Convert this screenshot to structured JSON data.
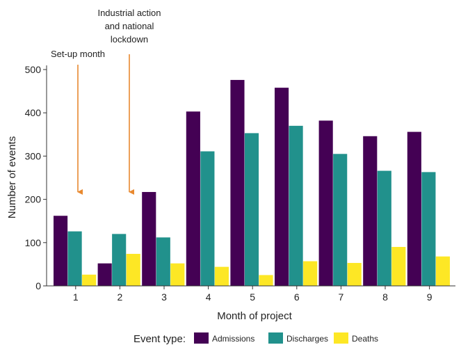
{
  "chart_data": {
    "type": "bar",
    "categories": [
      "1",
      "2",
      "3",
      "4",
      "5",
      "6",
      "7",
      "8",
      "9"
    ],
    "series": [
      {
        "name": "Admissions",
        "values": [
          162,
          52,
          217,
          403,
          476,
          458,
          382,
          346,
          356
        ],
        "color": "#440154"
      },
      {
        "name": "Discharges",
        "values": [
          126,
          120,
          112,
          311,
          353,
          370,
          305,
          266,
          263
        ],
        "color": "#21918c"
      },
      {
        "name": "Deaths",
        "values": [
          26,
          74,
          52,
          44,
          25,
          57,
          53,
          90,
          68
        ],
        "color": "#fde725"
      }
    ],
    "title": "",
    "xlabel": "Month of project",
    "ylabel": "Number of events",
    "ylim": [
      0,
      500
    ],
    "yticks": [
      0,
      100,
      200,
      300,
      400,
      500
    ],
    "grid": false,
    "legend": {
      "title": "Event type:",
      "placement": "bottom"
    },
    "annotations": [
      {
        "lines": [
          "Set-up month"
        ],
        "category": "1",
        "color": "#e8892f"
      },
      {
        "lines": [
          "Industrial action",
          "and national",
          "lockdown"
        ],
        "category": "2",
        "color": "#e8892f"
      }
    ]
  }
}
